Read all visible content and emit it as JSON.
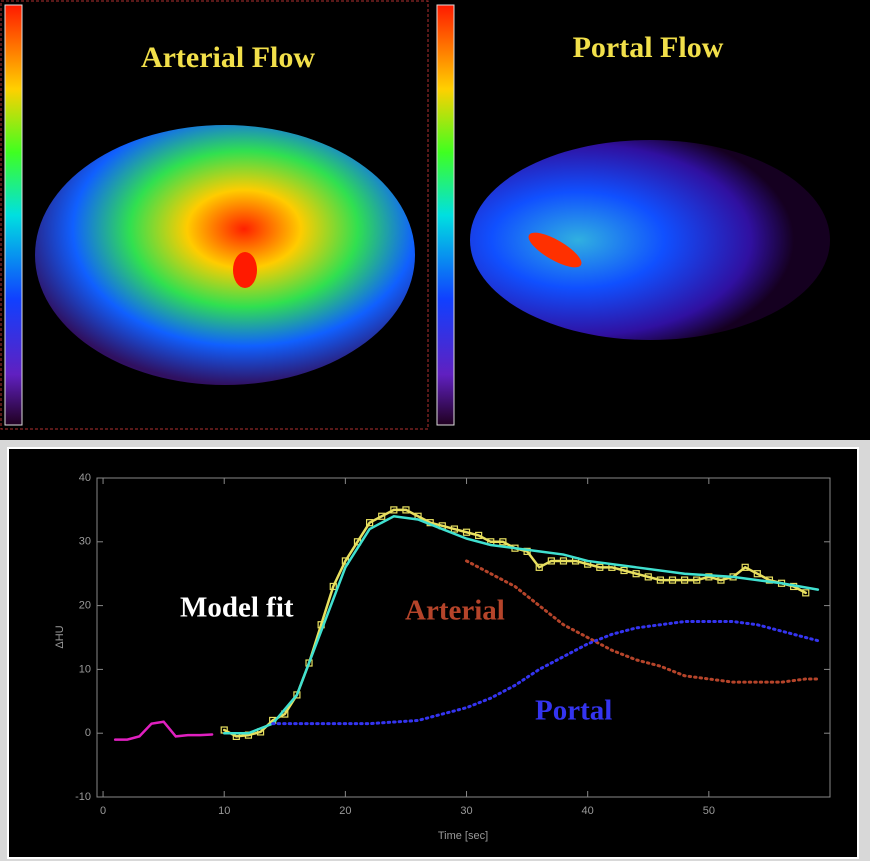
{
  "images": [
    {
      "title": "Arterial Flow"
    },
    {
      "title": "Portal Flow"
    }
  ],
  "chart_data": {
    "type": "line",
    "x_label": "Time [sec]",
    "y_label": "ΔHU",
    "xlim": [
      -0.5,
      60
    ],
    "ylim": [
      -10,
      40
    ],
    "xticks": [
      0,
      10,
      20,
      30,
      40,
      50
    ],
    "yticks": [
      -10,
      0,
      10,
      20,
      30,
      40
    ],
    "grid": false,
    "series": [
      {
        "color": "#e020c0",
        "style": "solid",
        "markers": false,
        "x": [
          1,
          2,
          3,
          4,
          5,
          6,
          7,
          8,
          9
        ],
        "values": [
          -1,
          -1,
          -0.5,
          1.5,
          1.8,
          -0.5,
          -0.3,
          -0.3,
          -0.2
        ]
      },
      {
        "color": "#e8e060",
        "style": "solid",
        "markers": true,
        "x": [
          10,
          11,
          12,
          13,
          14,
          15,
          16,
          17,
          18,
          19,
          20,
          21,
          22,
          23,
          24,
          25,
          26,
          27,
          28,
          29,
          30,
          31,
          32,
          33,
          34,
          35,
          36,
          37,
          38,
          39,
          40,
          41,
          42,
          43,
          44,
          45,
          46,
          47,
          48,
          49,
          50,
          51,
          52,
          53,
          54,
          55,
          56,
          57,
          58
        ],
        "values": [
          0.5,
          -0.5,
          -0.3,
          0.2,
          2,
          3,
          6,
          11,
          17,
          23,
          27,
          30,
          33,
          34,
          35,
          35,
          34,
          33,
          32.5,
          32,
          31.5,
          31,
          30,
          30,
          29,
          28.5,
          26,
          27,
          27,
          27,
          26.5,
          26,
          26,
          25.5,
          25,
          24.5,
          24,
          24,
          24,
          24,
          24.5,
          24,
          24.5,
          26,
          25,
          24,
          23.5,
          23,
          22
        ]
      },
      {
        "name": "Model fit",
        "color": "#40e0d0",
        "style": "solid",
        "markers": false,
        "x": [
          10,
          12,
          14,
          16,
          18,
          20,
          22,
          24,
          26,
          28,
          30,
          32,
          34,
          36,
          38,
          40,
          44,
          48,
          52,
          56,
          59
        ],
        "values": [
          0,
          0,
          1.5,
          6,
          16,
          26,
          32,
          34,
          33.5,
          32,
          30.5,
          29.5,
          29,
          28.5,
          28,
          27,
          26,
          25,
          24.5,
          23.5,
          22.5
        ]
      },
      {
        "name": "Arterial",
        "color": "#b5442a",
        "style": "dotted",
        "markers": false,
        "x": [
          30,
          32,
          34,
          36,
          38,
          40,
          42,
          44,
          46,
          48,
          50,
          52,
          54,
          56,
          58,
          59
        ],
        "values": [
          27,
          25,
          23,
          20,
          17,
          15,
          13,
          11.5,
          10.5,
          9,
          8.5,
          8,
          8,
          8,
          8.5,
          8.5
        ]
      },
      {
        "name": "Portal",
        "color": "#3434f0",
        "style": "dotted",
        "markers": false,
        "x": [
          14,
          18,
          22,
          26,
          28,
          30,
          32,
          34,
          36,
          38,
          40,
          42,
          44,
          46,
          48,
          50,
          52,
          54,
          56,
          58,
          59
        ],
        "values": [
          1.5,
          1.5,
          1.5,
          2,
          3,
          4,
          5.5,
          7.5,
          10,
          12,
          14,
          15.5,
          16.5,
          17,
          17.5,
          17.5,
          17.5,
          17,
          16,
          15,
          14.5
        ]
      }
    ]
  }
}
